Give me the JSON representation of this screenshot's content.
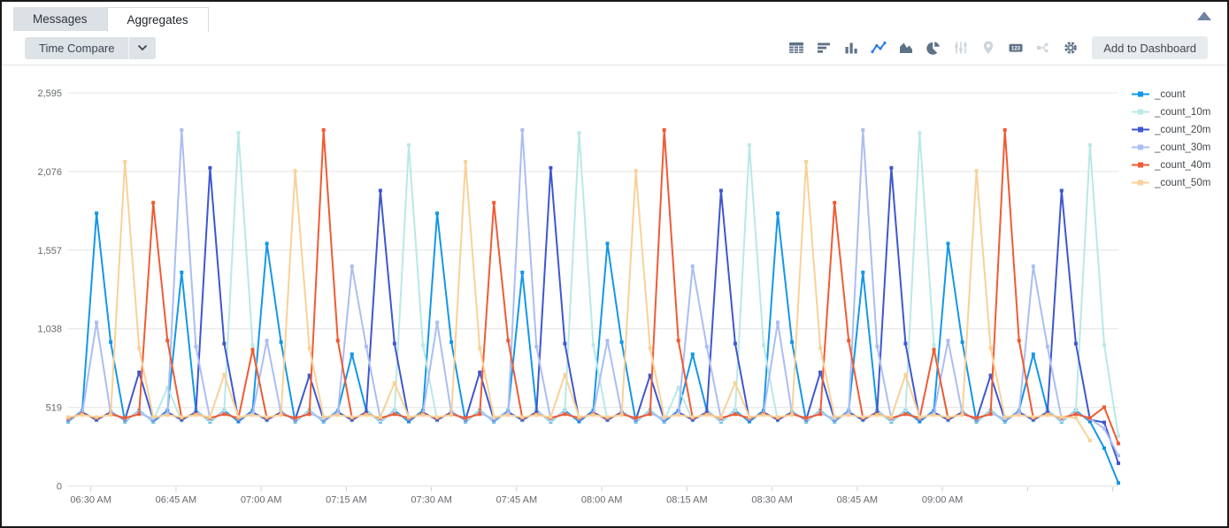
{
  "tabs": [
    {
      "id": "messages",
      "label": "Messages",
      "active": false
    },
    {
      "id": "aggregates",
      "label": "Aggregates",
      "active": true
    }
  ],
  "toolbar": {
    "time_compare_label": "Time Compare",
    "add_to_dashboard_label": "Add to Dashboard",
    "icons": [
      {
        "name": "table",
        "state": "normal"
      },
      {
        "name": "bar-horizontal",
        "state": "normal"
      },
      {
        "name": "column-chart",
        "state": "normal"
      },
      {
        "name": "line-chart",
        "state": "active"
      },
      {
        "name": "area-chart",
        "state": "normal"
      },
      {
        "name": "pie-chart",
        "state": "normal"
      },
      {
        "name": "sliders",
        "state": "disabled"
      },
      {
        "name": "map-pin",
        "state": "disabled"
      },
      {
        "name": "single-value",
        "state": "normal",
        "badge": "123"
      },
      {
        "name": "node-graph",
        "state": "disabled"
      },
      {
        "name": "settings-gear",
        "state": "normal"
      }
    ],
    "icon_colors": {
      "normal": "#5e7287",
      "active": "#2b7de0",
      "disabled": "#ccd5dd"
    }
  },
  "chart_data": {
    "type": "line",
    "markers": "square",
    "grid": "horizontal",
    "legend_position": "right",
    "y_axis": {
      "max": 2595,
      "ticks": [
        {
          "value": 0,
          "label": "0"
        },
        {
          "value": 519,
          "label": "519"
        },
        {
          "value": 1038,
          "label": "1,038"
        },
        {
          "value": 1557,
          "label": "1,557"
        },
        {
          "value": 2076,
          "label": "2,076"
        },
        {
          "value": 2595,
          "label": "2,595"
        }
      ]
    },
    "x_axis": {
      "start_minutes": 386,
      "step_minutes": 2.5,
      "points_per_series": 75,
      "ticks": [
        {
          "minutes": 390,
          "label": "06:30 AM"
        },
        {
          "minutes": 405,
          "label": "06:45 AM"
        },
        {
          "minutes": 420,
          "label": "07:00 AM"
        },
        {
          "minutes": 435,
          "label": "07:15 AM"
        },
        {
          "minutes": 450,
          "label": "07:30 AM"
        },
        {
          "minutes": 465,
          "label": "07:45 AM"
        },
        {
          "minutes": 480,
          "label": "08:00 AM"
        },
        {
          "minutes": 495,
          "label": "08:15 AM"
        },
        {
          "minutes": 510,
          "label": "08:30 AM"
        },
        {
          "minutes": 525,
          "label": "08:45 AM"
        },
        {
          "minutes": 540,
          "label": "09:00 AM"
        }
      ],
      "unlabeled_tick_minutes": [
        555,
        570
      ]
    },
    "series": [
      {
        "name": "_count",
        "color": "#1397e8",
        "values": [
          425,
          498,
          1800,
          950,
          425,
          498,
          425,
          498,
          1410,
          498,
          425,
          498,
          425,
          498,
          1600,
          950,
          425,
          498,
          425,
          498,
          870,
          498,
          425,
          498,
          425,
          498,
          1800,
          950,
          425,
          498,
          425,
          498,
          1410,
          498,
          425,
          498,
          425,
          498,
          1600,
          950,
          425,
          498,
          425,
          498,
          870,
          498,
          425,
          498,
          425,
          498,
          1800,
          950,
          425,
          498,
          425,
          498,
          1410,
          498,
          425,
          498,
          425,
          498,
          1600,
          950,
          425,
          498,
          425,
          498,
          870,
          498,
          425,
          498,
          425,
          250,
          20
        ]
      },
      {
        "name": "_count_10m",
        "color": "#b9e9e6",
        "values": [
          431,
          492,
          431,
          492,
          431,
          492,
          431,
          650,
          431,
          492,
          431,
          492,
          2330,
          930,
          431,
          492,
          431,
          492,
          431,
          492,
          431,
          492,
          431,
          492,
          2250,
          930,
          431,
          492,
          431,
          492,
          431,
          492,
          431,
          492,
          431,
          492,
          2330,
          930,
          431,
          492,
          431,
          492,
          431,
          650,
          431,
          492,
          431,
          492,
          2250,
          930,
          431,
          492,
          431,
          492,
          431,
          492,
          431,
          492,
          431,
          492,
          2330,
          930,
          431,
          492,
          431,
          492,
          431,
          492,
          431,
          492,
          431,
          492,
          2250,
          930,
          330
        ]
      },
      {
        "name": "_count_20m",
        "color": "#3e57cf",
        "values": [
          437,
          486,
          437,
          486,
          437,
          750,
          437,
          486,
          437,
          486,
          2100,
          940,
          437,
          486,
          437,
          486,
          437,
          730,
          437,
          486,
          437,
          486,
          1950,
          940,
          437,
          486,
          437,
          486,
          437,
          750,
          437,
          486,
          437,
          486,
          2100,
          940,
          437,
          486,
          437,
          486,
          437,
          730,
          437,
          486,
          437,
          486,
          1950,
          940,
          437,
          486,
          437,
          486,
          437,
          750,
          437,
          486,
          437,
          486,
          2100,
          940,
          437,
          486,
          437,
          486,
          437,
          730,
          437,
          486,
          437,
          486,
          1950,
          940,
          437,
          420,
          150
        ]
      },
      {
        "name": "_count_30m",
        "color": "#abbef2",
        "values": [
          443,
          480,
          1080,
          480,
          443,
          480,
          443,
          480,
          2350,
          920,
          443,
          480,
          443,
          480,
          960,
          480,
          443,
          480,
          443,
          480,
          1450,
          920,
          443,
          480,
          443,
          480,
          1080,
          480,
          443,
          480,
          443,
          480,
          2350,
          920,
          443,
          480,
          443,
          480,
          960,
          480,
          443,
          480,
          443,
          480,
          1450,
          920,
          443,
          480,
          443,
          480,
          1080,
          480,
          443,
          480,
          443,
          480,
          2350,
          920,
          443,
          480,
          443,
          480,
          960,
          480,
          443,
          480,
          443,
          480,
          1450,
          920,
          443,
          480,
          443,
          380,
          200
        ]
      },
      {
        "name": "_count_40m",
        "color": "#f05b33",
        "values": [
          449,
          474,
          449,
          474,
          449,
          474,
          1870,
          960,
          449,
          474,
          449,
          474,
          449,
          900,
          449,
          474,
          449,
          474,
          2350,
          960,
          449,
          474,
          449,
          474,
          449,
          474,
          449,
          474,
          449,
          474,
          1870,
          960,
          449,
          474,
          449,
          474,
          449,
          474,
          449,
          474,
          449,
          474,
          2350,
          960,
          449,
          474,
          449,
          474,
          449,
          474,
          449,
          474,
          449,
          474,
          1870,
          960,
          449,
          474,
          449,
          474,
          449,
          900,
          449,
          474,
          449,
          474,
          2350,
          960,
          449,
          474,
          449,
          474,
          449,
          520,
          280
        ]
      },
      {
        "name": "_count_50m",
        "color": "#f9d197",
        "values": [
          455,
          468,
          455,
          468,
          2140,
          910,
          455,
          468,
          455,
          468,
          455,
          735,
          455,
          468,
          455,
          468,
          2080,
          910,
          455,
          468,
          455,
          468,
          455,
          680,
          455,
          468,
          455,
          468,
          2140,
          910,
          455,
          468,
          455,
          468,
          455,
          735,
          455,
          468,
          455,
          468,
          2080,
          910,
          455,
          468,
          455,
          468,
          455,
          680,
          455,
          468,
          455,
          468,
          2140,
          910,
          455,
          468,
          455,
          468,
          455,
          735,
          455,
          468,
          455,
          468,
          2080,
          910,
          455,
          468,
          455,
          468,
          455,
          450,
          300
        ]
      }
    ]
  }
}
